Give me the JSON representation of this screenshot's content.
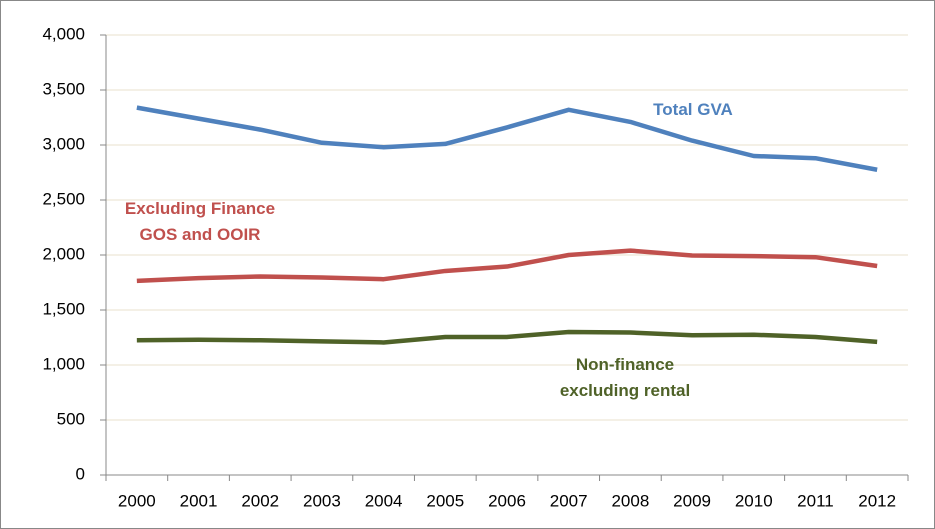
{
  "chart_data": {
    "type": "line",
    "categories": [
      "2000",
      "2001",
      "2002",
      "2003",
      "2004",
      "2005",
      "2006",
      "2007",
      "2008",
      "2009",
      "2010",
      "2011",
      "2012"
    ],
    "series": [
      {
        "name": "Total GVA",
        "color": "#4f81bd",
        "values": [
          3340,
          3240,
          3140,
          3020,
          2980,
          3010,
          3160,
          3320,
          3210,
          3040,
          2900,
          2880,
          2775
        ]
      },
      {
        "name": "Excluding Finance GOS and OOIR",
        "color": "#c0504d",
        "values": [
          1765,
          1790,
          1805,
          1795,
          1780,
          1855,
          1895,
          2000,
          2040,
          1995,
          1990,
          1980,
          1900
        ]
      },
      {
        "name": "Non-finance excluding rental",
        "color": "#4f6228",
        "values": [
          1225,
          1230,
          1225,
          1215,
          1205,
          1255,
          1255,
          1300,
          1295,
          1270,
          1275,
          1255,
          1210
        ]
      }
    ],
    "ylim": [
      0,
      4000
    ],
    "yticks": [
      0,
      500,
      {
        "value": 1000,
        "label": "1,000"
      },
      {
        "value": 1500,
        "label": "1,500"
      },
      {
        "value": 2000,
        "label": "2,000"
      },
      {
        "value": 2500,
        "label": "2,500"
      },
      {
        "value": 3000,
        "label": "3,000"
      },
      {
        "value": 3500,
        "label": "3,500"
      },
      {
        "value": 4000,
        "label": "4,000"
      }
    ],
    "grid": true
  }
}
